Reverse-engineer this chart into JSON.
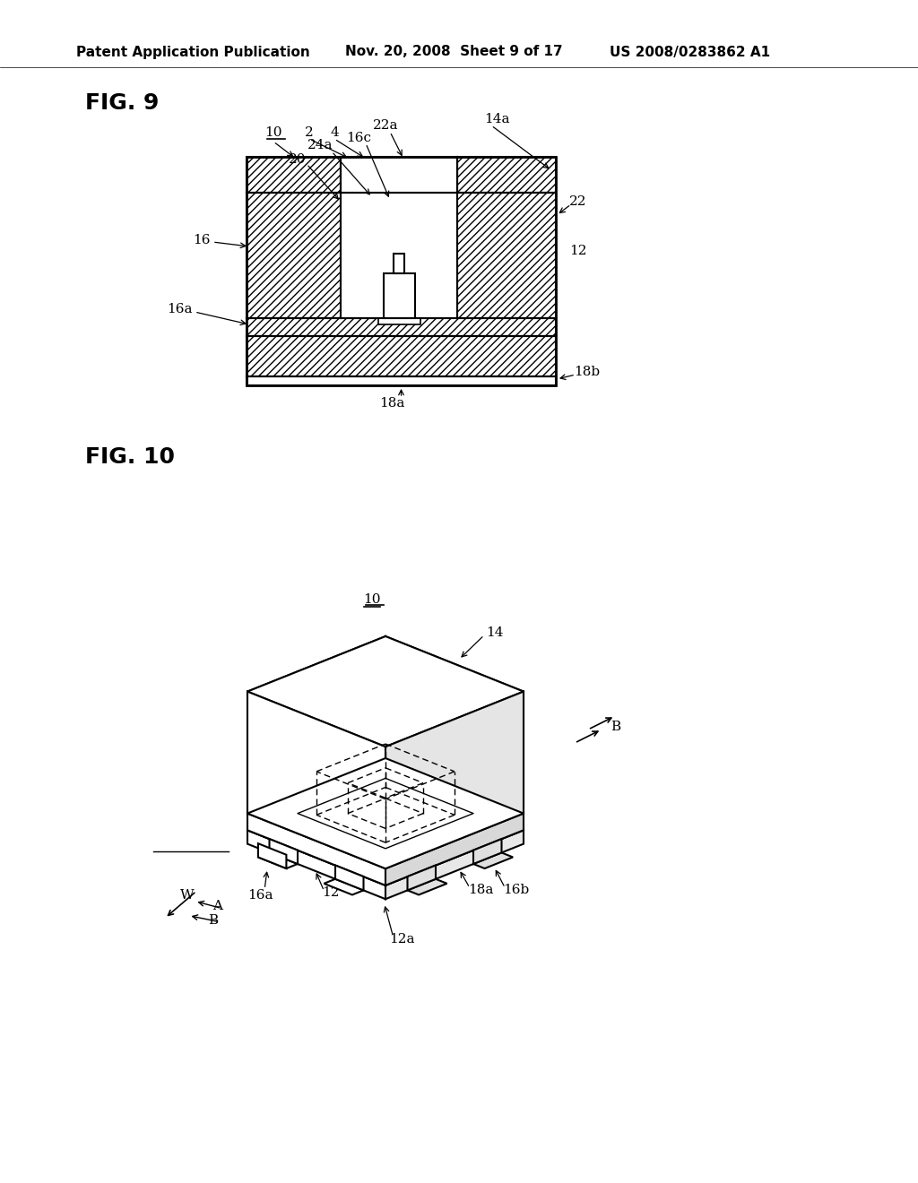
{
  "bg_color": "#ffffff",
  "header_text": "Patent Application Publication",
  "header_date": "Nov. 20, 2008  Sheet 9 of 17",
  "header_patent": "US 2008/0283862 A1",
  "fig9_label": "FIG. 9",
  "fig10_label": "FIG. 10"
}
